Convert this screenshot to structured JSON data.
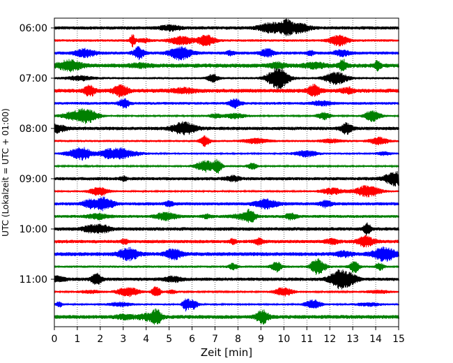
{
  "chart_data": {
    "type": "line",
    "xlabel": "Zeit  [min]",
    "ylabel": "UTC (Lokalzeit = UTC + 01:00)",
    "xlim": [
      0,
      15
    ],
    "x_ticks": [
      0,
      1,
      2,
      3,
      4,
      5,
      6,
      7,
      8,
      9,
      10,
      11,
      12,
      13,
      14,
      15
    ],
    "y_tick_labels": [
      "06:00",
      "07:00",
      "08:00",
      "09:00",
      "10:00",
      "11:00"
    ],
    "grid": "vertical dotted lines at each minute",
    "trace_interval_minutes": 15,
    "trace_start": "06:00",
    "trace_count": 24,
    "trace_colors": [
      "#000000",
      "#ff0000",
      "#0000ff",
      "#008000"
    ]
  }
}
